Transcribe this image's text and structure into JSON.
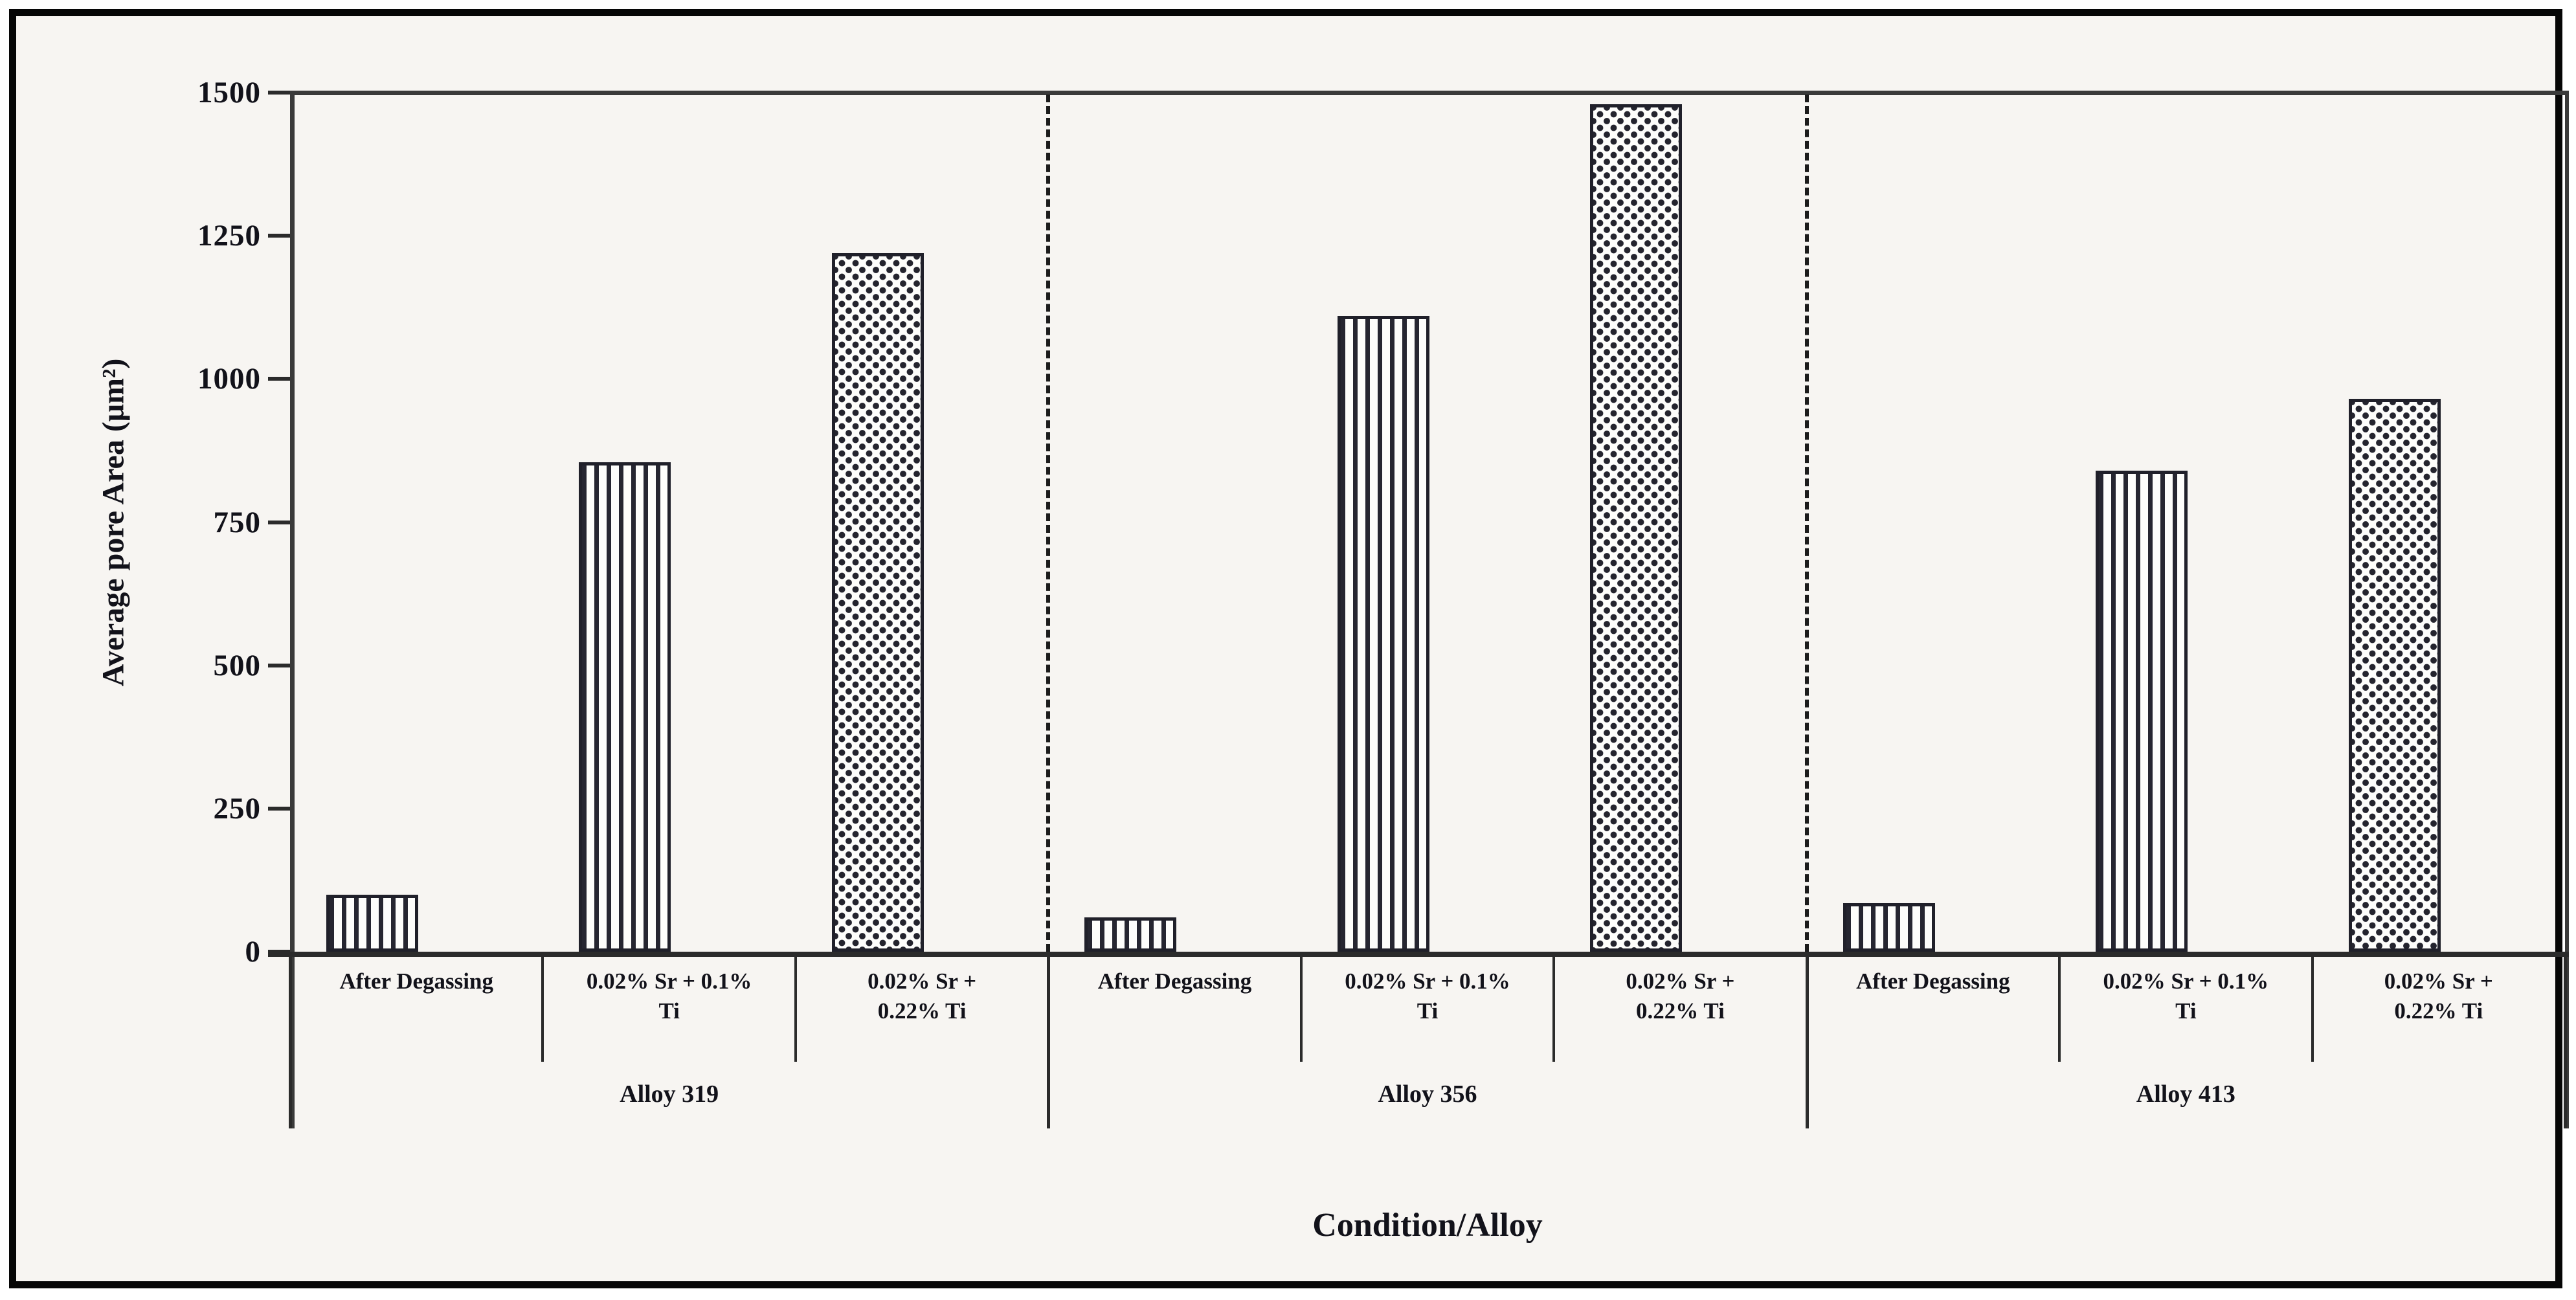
{
  "figure": {
    "y_axis_title": "Average pore Area (μm²)",
    "x_axis_title": "Condition/Alloy",
    "y_tick_labels": [
      "0",
      "250",
      "500",
      "750",
      "1000",
      "1250",
      "1500"
    ]
  },
  "chart_data": {
    "type": "bar",
    "title": "",
    "xlabel": "Condition/Alloy",
    "ylabel": "Average pore Area (μm²)",
    "ylim": [
      0,
      1500
    ],
    "y_tick_step": 250,
    "grid": false,
    "legend": "none",
    "categories": [
      "After Degassing",
      "0.02% Sr + 0.1%\nTi",
      "0.02% Sr +\n0.22% Ti"
    ],
    "bar_patterns": [
      "vertical-stripes",
      "vertical-stripes",
      "dots"
    ],
    "groups": [
      {
        "label": "Alloy 319",
        "values": [
          100,
          855,
          1220
        ]
      },
      {
        "label": "Alloy 356",
        "values": [
          60,
          1110,
          1480
        ]
      },
      {
        "label": "Alloy 413",
        "values": [
          85,
          840,
          965
        ]
      }
    ],
    "group_separator_style": "dashed-vertical"
  }
}
